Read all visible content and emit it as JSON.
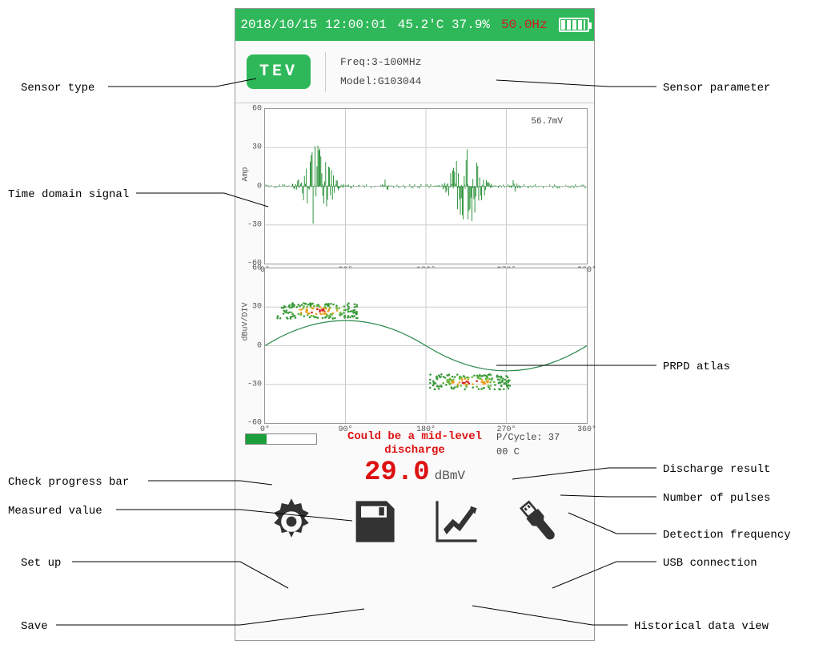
{
  "status": {
    "datetime": "2018/10/15 12:00:01",
    "tempHum": "45.2'C 37.9%",
    "freq": "50.0Hz"
  },
  "sensor": {
    "badge": "TEV",
    "freqLabel": "Freq:3-100MHz",
    "modelLabel": "Model:G103044"
  },
  "tds": {
    "ylabel": "Amp",
    "peakLabel": "56.7mV",
    "ylim": [
      -60,
      60
    ],
    "yticks": [
      -60,
      -30,
      0,
      30,
      60
    ],
    "xticks": [
      "0°",
      "90°",
      "180°",
      "270°",
      "360°"
    ],
    "grid_color": "#cccccc",
    "signal_color": "#1a8a2a"
  },
  "prpd": {
    "ylabel": "dBuV/DIV",
    "ylim": [
      -60,
      60
    ],
    "yticks": [
      -60,
      -30,
      0,
      30,
      60
    ],
    "xticks": [
      "0°",
      "90°",
      "180°",
      "270°",
      "360°"
    ],
    "sine_color": "#2a8a4a",
    "cluster1_color": "#3a9a3a",
    "cluster2_hot": "#e07020",
    "cluster3_hot": "#d92020"
  },
  "result": {
    "warning": "Could be a mid-level discharge",
    "value": "29.0",
    "unit": "dBmV",
    "pcycle": "P/Cycle: 37",
    "detfreq": "00 C"
  },
  "labels": {
    "sensorType": "Sensor type",
    "sensorParam": "Sensor parameter",
    "tds": "Time domain signal",
    "prpd": "PRPD atlas",
    "progress": "Check progress bar",
    "measured": "Measured value",
    "setup": "Set up",
    "save": "Save",
    "discharge": "Discharge result",
    "pulses": "Number of pulses",
    "detFreq": "Detection frequency",
    "usb": "USB connection",
    "historical": "Historical data view"
  },
  "colors": {
    "green": "#2fb85a",
    "red": "#d11515"
  }
}
